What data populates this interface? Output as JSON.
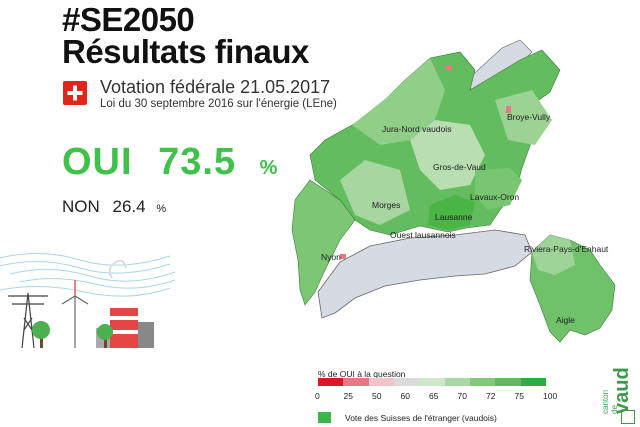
{
  "header": {
    "hashtag": "#SE2050",
    "title": "Résultats finaux",
    "vote_line1": "Votation fédérale 21.05.2017",
    "vote_line2": "Loi du 30 septembre 2016 sur l'énergie (LEne)"
  },
  "results": {
    "oui_label": "OUI",
    "oui_value": "73.5",
    "oui_unit": "%",
    "non_label": "NON",
    "non_value": "26.4",
    "non_unit": "%"
  },
  "map": {
    "places": [
      "Jura-Nord vaudois",
      "Broye-Vully",
      "Gros-de-Vaud",
      "Lavaux-Oron",
      "Morges",
      "Lausanne",
      "Ouest lausannois",
      "Riviera-Pays-d'Enhaut",
      "Nyon",
      "Aigle"
    ]
  },
  "legend": {
    "title": "% de OUI à la question",
    "ticks": [
      "0",
      "25",
      "50",
      "60",
      "65",
      "70",
      "72",
      "75",
      "100"
    ],
    "colors": [
      "#d7192a",
      "#e57a86",
      "#f2c3c7",
      "#d9dcd9",
      "#cfe8cc",
      "#aad8a4",
      "#84c97b",
      "#5cbc58",
      "#2fad3c"
    ],
    "diaspora_label": "Vote des Suisses de l'étranger (vaudois)",
    "diaspora_color": "#3cb54a"
  },
  "logo": {
    "canton": "canton de",
    "name": "vaud"
  },
  "colors": {
    "oui": "#3ec24a",
    "flag_red": "#e1251b"
  }
}
